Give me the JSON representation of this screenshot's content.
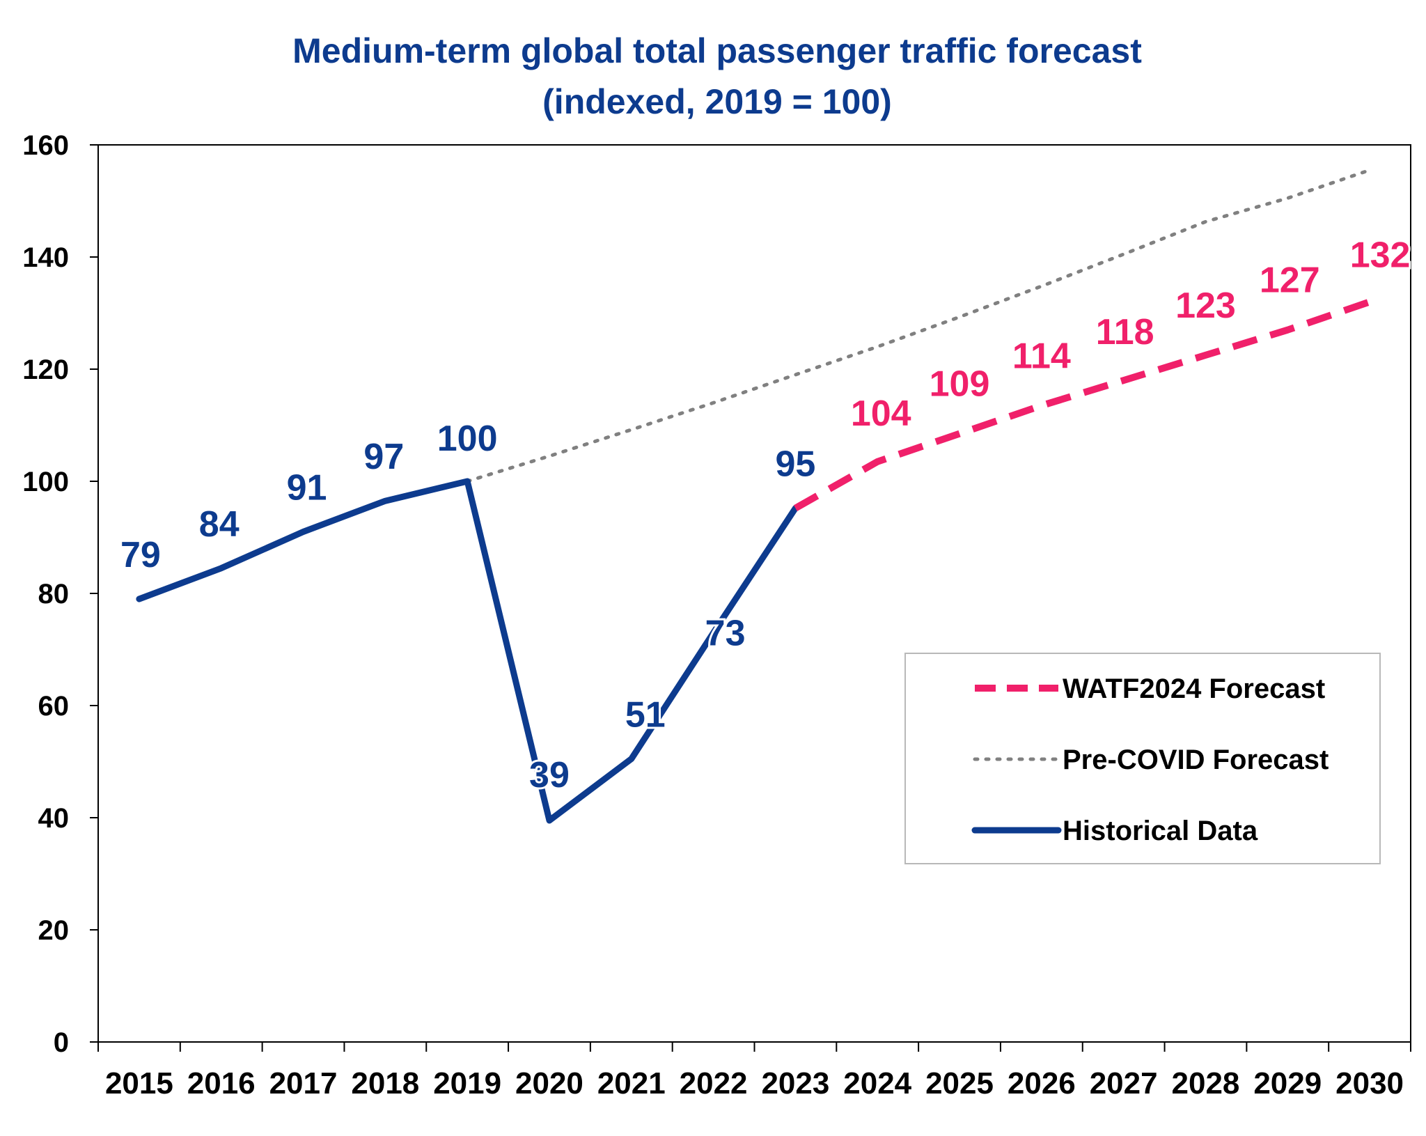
{
  "colors": {
    "historical": "#0d3b8e",
    "forecast": "#f0206a",
    "precovid": "#808080",
    "axis": "#000000",
    "label_halo": "#ffffff"
  },
  "chart_data": {
    "type": "line",
    "title_lines": [
      "Medium-term global total passenger traffic forecast",
      "(indexed, 2019 = 100)"
    ],
    "x": [
      "2015",
      "2016",
      "2017",
      "2018",
      "2019",
      "2020",
      "2021",
      "2022",
      "2023",
      "2024",
      "2025",
      "2026",
      "2027",
      "2028",
      "2029",
      "2030"
    ],
    "ylim": [
      0,
      160
    ],
    "yticks": [
      0,
      20,
      40,
      60,
      80,
      100,
      120,
      140,
      160
    ],
    "grid": false,
    "legend": {
      "placement": "right",
      "order": [
        "forecast",
        "precovid",
        "historical"
      ]
    },
    "series": {
      "historical": {
        "name": "Historical Data",
        "style": "solid",
        "x": [
          "2015",
          "2016",
          "2017",
          "2018",
          "2019",
          "2020",
          "2021",
          "2022",
          "2023"
        ],
        "values": [
          79,
          84.5,
          91,
          96.5,
          100,
          39.5,
          50.5,
          73,
          95.2
        ],
        "labels": [
          "79",
          "84",
          "91",
          "97",
          "100",
          "39",
          "51",
          "73",
          "95"
        ]
      },
      "forecast": {
        "name": "WATF2024 Forecast",
        "style": "dashed",
        "x": [
          "2023",
          "2024",
          "2025",
          "2026",
          "2027",
          "2028",
          "2029",
          "2030"
        ],
        "values": [
          95.2,
          103.5,
          108.5,
          113.5,
          118,
          122.5,
          127,
          132
        ],
        "labels": [
          "",
          "104",
          "109",
          "114",
          "118",
          "123",
          "127",
          "132"
        ]
      },
      "precovid": {
        "name": "Pre-COVID Forecast",
        "style": "dotted",
        "x": [
          "2019",
          "2020",
          "2021",
          "2022",
          "2023",
          "2024",
          "2025",
          "2026",
          "2027",
          "2028",
          "2029",
          "2030"
        ],
        "values": [
          100,
          104.5,
          109.2,
          114,
          119,
          124,
          129.3,
          134.8,
          140.5,
          146.3,
          150.5,
          155.5
        ]
      }
    }
  }
}
